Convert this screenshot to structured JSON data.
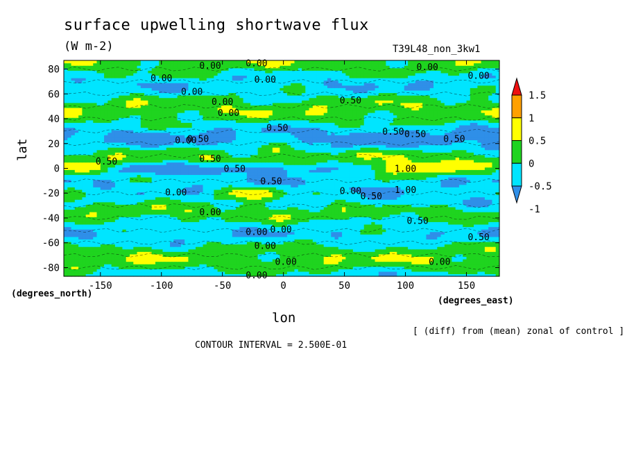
{
  "chart_data": {
    "type": "heatmap",
    "title": "surface upwelling shortwave flux",
    "units": "(W m-2)",
    "run_id": "T39L48_non_3kw1",
    "xlabel": "lon",
    "ylabel": "lat",
    "x_units_label": "(degrees_east)",
    "y_units_label": "(degrees_north)",
    "xlim": [
      -180,
      177
    ],
    "ylim": [
      -87,
      87
    ],
    "x_ticks": [
      -150,
      -100,
      -50,
      0,
      50,
      100,
      150
    ],
    "x_tick_labels": [
      "-150",
      "-100",
      "-50",
      "0",
      "50",
      "100",
      "150"
    ],
    "y_ticks": [
      -80,
      -60,
      -40,
      -20,
      0,
      20,
      40,
      60,
      80
    ],
    "y_tick_labels": [
      "-80",
      "-60",
      "-40",
      "-20",
      "0",
      "20",
      "40",
      "60",
      "80"
    ],
    "colorbar": {
      "levels": [
        -1,
        -0.5,
        0,
        0.5,
        1,
        1.5
      ],
      "labels": [
        "-1",
        "-0.5",
        "0",
        "0.5",
        "1",
        "1.5"
      ],
      "colors": [
        "#2f8fe8",
        "#00e5ff",
        "#1fd41f",
        "#ffff00",
        "#ffa000",
        "#ee1010"
      ],
      "extend": "both"
    },
    "contour_labels": [
      {
        "lon": -60,
        "lat": 83,
        "text": "0.00"
      },
      {
        "lon": -22,
        "lat": 85,
        "text": "0.00"
      },
      {
        "lon": -100,
        "lat": 73,
        "text": "0.00"
      },
      {
        "lon": -15,
        "lat": 72,
        "text": "0.00"
      },
      {
        "lon": -75,
        "lat": 62,
        "text": "0.00"
      },
      {
        "lon": -50,
        "lat": 54,
        "text": "0.00"
      },
      {
        "lon": -45,
        "lat": 45,
        "text": "0.00"
      },
      {
        "lon": -80,
        "lat": 23,
        "text": "0.00"
      },
      {
        "lon": -70,
        "lat": 24,
        "text": "0.50"
      },
      {
        "lon": -5,
        "lat": 33,
        "text": "0.50"
      },
      {
        "lon": 55,
        "lat": 55,
        "text": "0.50"
      },
      {
        "lon": 118,
        "lat": 82,
        "text": "0.00"
      },
      {
        "lon": 160,
        "lat": 75,
        "text": "0.00"
      },
      {
        "lon": 90,
        "lat": 30,
        "text": "0.50"
      },
      {
        "lon": 108,
        "lat": 28,
        "text": "0.50"
      },
      {
        "lon": 140,
        "lat": 24,
        "text": "0.50"
      },
      {
        "lon": -145,
        "lat": 6,
        "text": "0.50"
      },
      {
        "lon": -60,
        "lat": 8,
        "text": "0.50"
      },
      {
        "lon": -40,
        "lat": 0,
        "text": "0.50"
      },
      {
        "lon": -10,
        "lat": -10,
        "text": "0.50"
      },
      {
        "lon": -88,
        "lat": -19,
        "text": "0.00"
      },
      {
        "lon": 55,
        "lat": -18,
        "text": "0.00"
      },
      {
        "lon": 72,
        "lat": -22,
        "text": "0.50"
      },
      {
        "lon": 100,
        "lat": -17,
        "text": "1.00"
      },
      {
        "lon": -60,
        "lat": -35,
        "text": "0.00"
      },
      {
        "lon": 110,
        "lat": -42,
        "text": "0.50"
      },
      {
        "lon": -22,
        "lat": -51,
        "text": "0.00"
      },
      {
        "lon": -2,
        "lat": -49,
        "text": "0.00"
      },
      {
        "lon": -15,
        "lat": -62,
        "text": "0.00"
      },
      {
        "lon": 2,
        "lat": -75,
        "text": "0.00"
      },
      {
        "lon": -22,
        "lat": -86,
        "text": "0.00"
      },
      {
        "lon": 160,
        "lat": -55,
        "text": "0.50"
      },
      {
        "lon": 128,
        "lat": -75,
        "text": "0.00"
      },
      {
        "lon": 100,
        "lat": 0,
        "text": "1.00"
      }
    ]
  },
  "footer": {
    "note": "[ (diff) from (mean) zonal of control ]",
    "interval": "CONTOUR INTERVAL = 2.500E-01"
  }
}
